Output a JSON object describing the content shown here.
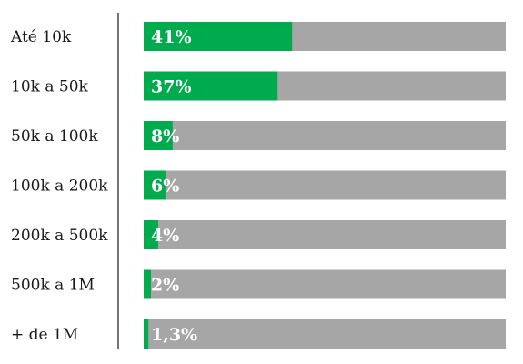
{
  "chart_data": {
    "type": "bar",
    "orientation": "horizontal",
    "categories": [
      "Até 10k",
      "10k a 50k",
      "50k a 100k",
      "100k a 200k",
      "200k a 500k",
      "500k a 1M",
      "+ de 1M"
    ],
    "values": [
      41,
      37,
      8,
      6,
      4,
      2,
      1.3
    ],
    "value_labels": [
      "41%",
      "37%",
      "8%",
      "6%",
      "4%",
      "2%",
      "1,3%"
    ],
    "xlim": [
      0,
      100
    ],
    "grid": false,
    "colors": {
      "bar": "#00ab4e",
      "track": "#a6a6a6",
      "axis": "#1a1a1a",
      "label": "#1a1a1a",
      "value_text": "#ffffff"
    }
  }
}
